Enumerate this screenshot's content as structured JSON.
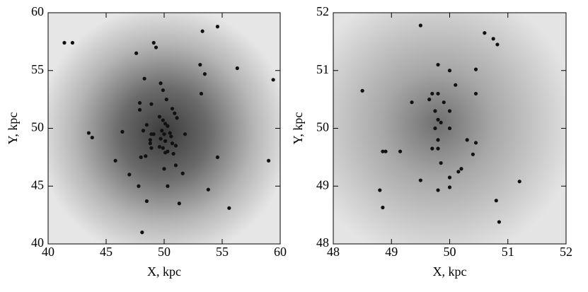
{
  "chart_data": [
    {
      "type": "scatter",
      "xlabel": "X, kpc",
      "ylabel": "Y, kpc",
      "color": "#111111",
      "xlim": [
        40,
        60
      ],
      "ylim": [
        40,
        60
      ],
      "xticks": [
        40,
        45,
        50,
        55,
        60
      ],
      "yticks": [
        40,
        45,
        50,
        55,
        60
      ],
      "x": [
        41.4,
        42.1,
        47.6,
        49.1,
        49.3,
        53.3,
        54.6,
        48.3,
        53.1,
        53.5,
        56.3,
        59.4,
        53.2,
        49.7,
        49.9,
        47.9,
        47.9,
        48.9,
        50.2,
        50.7,
        50.9,
        51.1,
        49.6,
        49.9,
        50.1,
        49.8,
        50.0,
        50.3,
        50.5,
        49.7,
        50.1,
        50.6,
        49.9,
        50.3,
        46.4,
        43.5,
        43.8,
        48.2,
        48.5,
        48.9,
        49.1,
        48.8,
        48.8,
        48.9,
        49.6,
        50.1,
        50.7,
        51.0,
        50.8,
        51.8,
        48.4,
        48.0,
        45.8,
        47.0,
        50.0,
        51.6,
        51.0,
        47.8,
        50.3,
        54.6,
        53.8,
        48.5,
        51.3,
        55.6,
        59.0,
        48.1
      ],
      "y": [
        57.4,
        57.4,
        56.5,
        57.4,
        57.0,
        58.4,
        58.8,
        54.3,
        55.5,
        54.7,
        55.2,
        54.2,
        53.0,
        53.9,
        53.3,
        52.2,
        51.6,
        52.1,
        52.5,
        51.7,
        51.3,
        50.9,
        51.0,
        50.7,
        50.4,
        49.8,
        49.5,
        50.2,
        49.6,
        49.1,
        48.9,
        49.3,
        48.3,
        48.0,
        49.7,
        49.6,
        49.2,
        49.8,
        50.3,
        49.5,
        49.5,
        49.0,
        48.7,
        48.3,
        48.4,
        47.9,
        48.7,
        48.5,
        47.8,
        49.5,
        47.6,
        47.5,
        47.2,
        46.0,
        46.5,
        46.1,
        46.8,
        45.0,
        45.0,
        47.5,
        44.7,
        43.7,
        43.5,
        43.1,
        47.2,
        41.0
      ]
    },
    {
      "type": "scatter",
      "xlabel": "X, kpc",
      "ylabel": "Y, kpc",
      "color": "#111111",
      "xlim": [
        48,
        52
      ],
      "ylim": [
        48,
        52
      ],
      "xticks": [
        48,
        49,
        50,
        51,
        52
      ],
      "yticks": [
        48,
        49,
        50,
        51,
        52
      ],
      "x": [
        49.5,
        50.6,
        50.75,
        50.82,
        48.5,
        49.8,
        50.0,
        50.45,
        50.1,
        49.7,
        49.8,
        49.35,
        49.65,
        49.9,
        50.45,
        49.75,
        50.0,
        49.8,
        49.85,
        49.75,
        50.0,
        49.7,
        49.8,
        49.8,
        50.3,
        50.45,
        50.4,
        48.85,
        48.9,
        49.15,
        49.85,
        50.15,
        50.2,
        50.0,
        49.5,
        51.2,
        48.8,
        49.8,
        50.0,
        48.85,
        50.8,
        50.85
      ],
      "y": [
        51.78,
        51.65,
        51.55,
        51.45,
        50.65,
        51.1,
        51.0,
        51.02,
        50.75,
        50.6,
        50.6,
        50.45,
        50.5,
        50.45,
        50.6,
        50.3,
        50.3,
        50.15,
        50.1,
        50.0,
        50.0,
        49.65,
        49.8,
        49.65,
        49.8,
        49.75,
        49.55,
        49.6,
        49.6,
        49.6,
        49.4,
        49.25,
        49.3,
        49.15,
        49.1,
        49.08,
        48.93,
        48.93,
        48.98,
        48.63,
        48.75,
        48.38
      ]
    }
  ]
}
